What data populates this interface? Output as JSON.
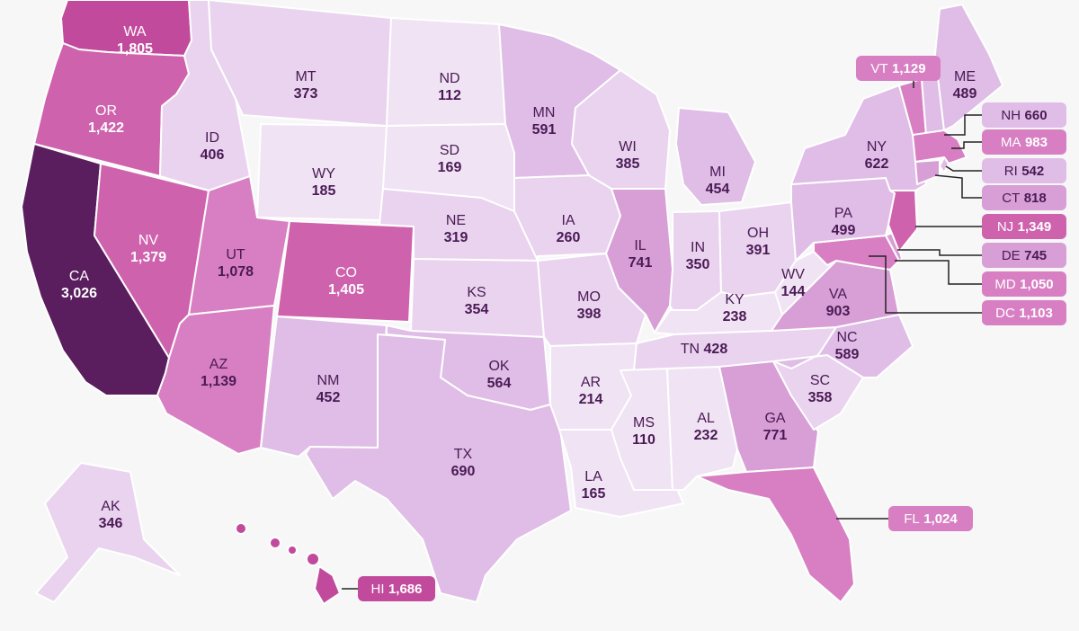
{
  "colors": {
    "background": "#f7f7f8",
    "scale": [
      "#f0e3f3",
      "#e9d3ee",
      "#dfbde6",
      "#d79fd6",
      "#d77fc2",
      "#cf62ad",
      "#c24a9c",
      "#5a1e5e"
    ],
    "text_dark": "#4a1a55",
    "text_light": "#ffffff",
    "leader_line": "#222222"
  },
  "states": [
    {
      "code": "WA",
      "abbr": "WA",
      "value": "1,805",
      "n": 1805
    },
    {
      "code": "OR",
      "abbr": "OR",
      "value": "1,422",
      "n": 1422
    },
    {
      "code": "CA",
      "abbr": "CA",
      "value": "3,026",
      "n": 3026
    },
    {
      "code": "ID",
      "abbr": "ID",
      "value": "406",
      "n": 406
    },
    {
      "code": "NV",
      "abbr": "NV",
      "value": "1,379",
      "n": 1379
    },
    {
      "code": "MT",
      "abbr": "MT",
      "value": "373",
      "n": 373
    },
    {
      "code": "WY",
      "abbr": "WY",
      "value": "185",
      "n": 185
    },
    {
      "code": "UT",
      "abbr": "UT",
      "value": "1,078",
      "n": 1078
    },
    {
      "code": "AZ",
      "abbr": "AZ",
      "value": "1,139",
      "n": 1139
    },
    {
      "code": "CO",
      "abbr": "CO",
      "value": "1,405",
      "n": 1405
    },
    {
      "code": "NM",
      "abbr": "NM",
      "value": "452",
      "n": 452
    },
    {
      "code": "ND",
      "abbr": "ND",
      "value": "112",
      "n": 112
    },
    {
      "code": "SD",
      "abbr": "SD",
      "value": "169",
      "n": 169
    },
    {
      "code": "NE",
      "abbr": "NE",
      "value": "319",
      "n": 319
    },
    {
      "code": "KS",
      "abbr": "KS",
      "value": "354",
      "n": 354
    },
    {
      "code": "OK",
      "abbr": "OK",
      "value": "564",
      "n": 564
    },
    {
      "code": "TX",
      "abbr": "TX",
      "value": "690",
      "n": 690
    },
    {
      "code": "MN",
      "abbr": "MN",
      "value": "591",
      "n": 591
    },
    {
      "code": "IA",
      "abbr": "IA",
      "value": "260",
      "n": 260
    },
    {
      "code": "MO",
      "abbr": "MO",
      "value": "398",
      "n": 398
    },
    {
      "code": "AR",
      "abbr": "AR",
      "value": "214",
      "n": 214
    },
    {
      "code": "LA",
      "abbr": "LA",
      "value": "165",
      "n": 165
    },
    {
      "code": "WI",
      "abbr": "WI",
      "value": "385",
      "n": 385
    },
    {
      "code": "IL",
      "abbr": "IL",
      "value": "741",
      "n": 741
    },
    {
      "code": "MI",
      "abbr": "MI",
      "value": "454",
      "n": 454
    },
    {
      "code": "IN",
      "abbr": "IN",
      "value": "350",
      "n": 350
    },
    {
      "code": "OH",
      "abbr": "OH",
      "value": "391",
      "n": 391
    },
    {
      "code": "KY",
      "abbr": "KY",
      "value": "238",
      "n": 238
    },
    {
      "code": "TN",
      "abbr": "TN",
      "value": "428",
      "n": 428
    },
    {
      "code": "MS",
      "abbr": "MS",
      "value": "110",
      "n": 110
    },
    {
      "code": "AL",
      "abbr": "AL",
      "value": "232",
      "n": 232
    },
    {
      "code": "GA",
      "abbr": "GA",
      "value": "771",
      "n": 771
    },
    {
      "code": "FL",
      "abbr": "FL",
      "value": "1,024",
      "n": 1024
    },
    {
      "code": "SC",
      "abbr": "SC",
      "value": "358",
      "n": 358
    },
    {
      "code": "NC",
      "abbr": "NC",
      "value": "589",
      "n": 589
    },
    {
      "code": "VA",
      "abbr": "VA",
      "value": "903",
      "n": 903
    },
    {
      "code": "WV",
      "abbr": "WV",
      "value": "144",
      "n": 144
    },
    {
      "code": "PA",
      "abbr": "PA",
      "value": "499",
      "n": 499
    },
    {
      "code": "NY",
      "abbr": "NY",
      "value": "622",
      "n": 622
    },
    {
      "code": "VT",
      "abbr": "VT",
      "value": "1,129",
      "n": 1129
    },
    {
      "code": "NH",
      "abbr": "NH",
      "value": "660",
      "n": 660
    },
    {
      "code": "ME",
      "abbr": "ME",
      "value": "489",
      "n": 489
    },
    {
      "code": "MA",
      "abbr": "MA",
      "value": "983",
      "n": 983
    },
    {
      "code": "RI",
      "abbr": "RI",
      "value": "542",
      "n": 542
    },
    {
      "code": "CT",
      "abbr": "CT",
      "value": "818",
      "n": 818
    },
    {
      "code": "NJ",
      "abbr": "NJ",
      "value": "1,349",
      "n": 1349
    },
    {
      "code": "DE",
      "abbr": "DE",
      "value": "745",
      "n": 745
    },
    {
      "code": "MD",
      "abbr": "MD",
      "value": "1,050",
      "n": 1050
    },
    {
      "code": "DC",
      "abbr": "DC",
      "value": "1,103",
      "n": 1103
    },
    {
      "code": "AK",
      "abbr": "AK",
      "value": "346",
      "n": 346
    },
    {
      "code": "HI",
      "abbr": "HI",
      "value": "1,686",
      "n": 1686
    }
  ]
}
